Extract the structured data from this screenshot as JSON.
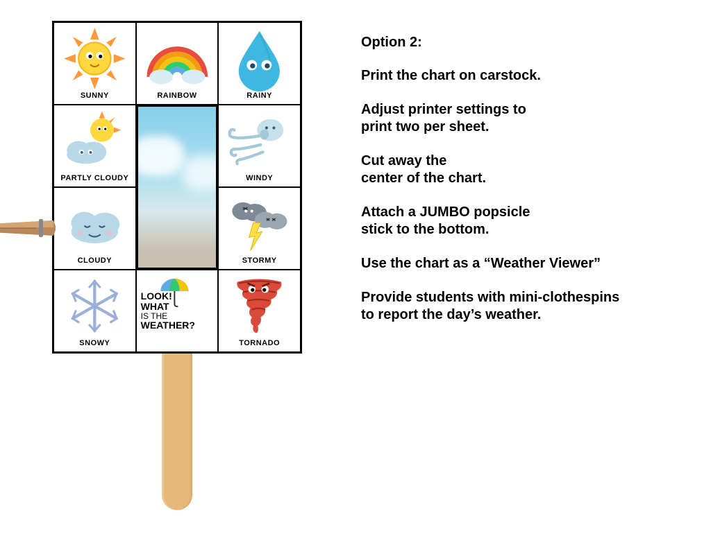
{
  "chart": {
    "cells": {
      "sunny": {
        "label": "SUNNY"
      },
      "rainbow": {
        "label": "RAINBOW"
      },
      "rainy": {
        "label": "RAINY"
      },
      "partly_cloudy": {
        "label": "PARTLY CLOUDY"
      },
      "windy": {
        "label": "WINDY"
      },
      "cloudy": {
        "label": "CLOUDY"
      },
      "stormy": {
        "label": "STORMY"
      },
      "snowy": {
        "label": "SNOWY"
      },
      "tornado": {
        "label": "TORNADO"
      }
    },
    "look_panel": {
      "line1": "LOOK!",
      "line2": "WHAT",
      "line3": "IS THE",
      "line4": "WEATHER?"
    },
    "colors": {
      "sun_core": "#ffd83d",
      "sun_ray": "#ff9a3c",
      "rainbow": [
        "#e74c3c",
        "#f39c12",
        "#f1c40f",
        "#2ecc71",
        "#5dade2",
        "#8e44ad"
      ],
      "raindrop": "#3eb8e0",
      "cloud": "#b8d8e8",
      "cloud_dark": "#7d8a96",
      "wind": "#a3c8d8",
      "lightning": "#ffe04a",
      "snow": "#b8c8e8",
      "tornado": "#d94a3a",
      "stick": "#e6b87a",
      "clothespin": "#b8875a"
    }
  },
  "instructions": {
    "heading": "Option 2:",
    "steps": [
      "Print the chart on carstock.",
      "Adjust printer settings to\nprint two per sheet.",
      "Cut away the\ncenter of the chart.",
      "Attach a JUMBO popsicle\nstick to the bottom.",
      "Use the chart as a “Weather Viewer”",
      "Provide students with mini-clothespins\nto report the day’s weather."
    ]
  }
}
